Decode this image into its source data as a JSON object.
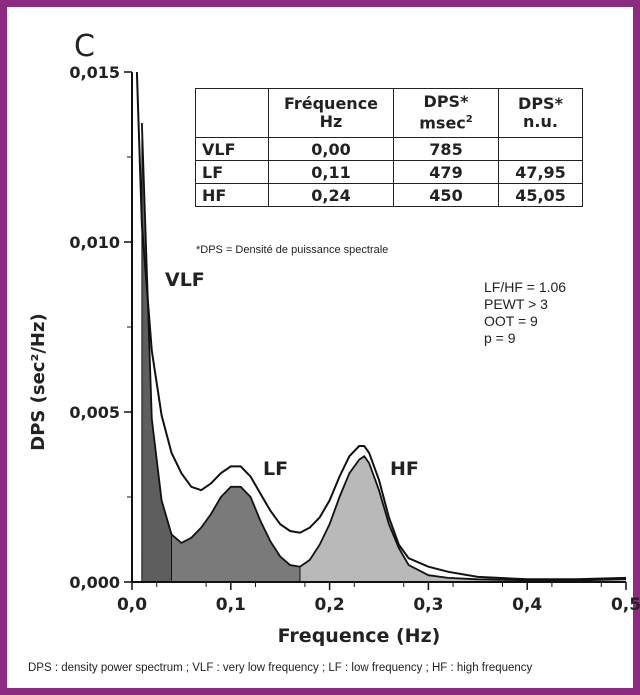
{
  "panel_label": "C",
  "table": {
    "headers": [
      {
        "line1": "",
        "line2": "",
        "sup": ""
      },
      {
        "line1": "Fréquence",
        "line2": "Hz",
        "sup": ""
      },
      {
        "line1": "DPS*",
        "line2": "msec",
        "sup": "2"
      },
      {
        "line1": "DPS*",
        "line2": "n.u.",
        "sup": ""
      }
    ],
    "rows": [
      {
        "band": "VLF",
        "freq": "0,00",
        "dps_ms": "785",
        "dps_nu": ""
      },
      {
        "band": "LF",
        "freq": "0,11",
        "dps_ms": "479",
        "dps_nu": "47,95"
      },
      {
        "band": "HF",
        "freq": "0,24",
        "dps_ms": "450",
        "dps_nu": "45,05"
      }
    ],
    "note": "*DPS = Densité de puissance spectrale"
  },
  "stats": [
    "LF/HF = 1.06",
    "PEWT > 3",
    "OOT = 9",
    "p = 9"
  ],
  "footnote": "DPS : density power spectrum ; VLF : very low frequency ; LF : low frequency ; HF : high frequency",
  "colors": {
    "frame": "#8d2b82",
    "lf_fill": "#7a7a7a",
    "hf_fill": "#b9b9b9",
    "vlf_fill": "#5e5e5e",
    "line": "#111111"
  },
  "chart_data": {
    "type": "area",
    "title": "",
    "xlabel": "Frequence (Hz)",
    "ylabel": "DPS (sec²/Hz)",
    "xlim": [
      0,
      0.5
    ],
    "ylim": [
      0,
      0.015
    ],
    "xticks": [
      "0,0",
      "0,1",
      "0,2",
      "0,3",
      "0,4",
      "0,5"
    ],
    "yticks": [
      "0,000",
      "0,005",
      "0,010",
      "0,015"
    ],
    "band_labels": [
      "VLF",
      "LF",
      "HF"
    ],
    "bands": [
      {
        "name": "VLF",
        "range": [
          0.0,
          0.04
        ]
      },
      {
        "name": "LF",
        "range": [
          0.04,
          0.17
        ]
      },
      {
        "name": "HF",
        "range": [
          0.17,
          0.4
        ]
      }
    ],
    "series": [
      {
        "x": [
          0.005,
          0.01,
          0.02,
          0.03,
          0.04,
          0.05,
          0.06,
          0.07,
          0.08,
          0.09,
          0.1,
          0.11,
          0.12,
          0.13,
          0.14,
          0.15,
          0.16,
          0.17,
          0.18,
          0.19,
          0.2,
          0.21,
          0.22,
          0.23,
          0.235,
          0.24,
          0.25,
          0.26,
          0.27,
          0.28,
          0.3,
          0.32,
          0.35,
          0.4,
          0.45,
          0.5
        ],
        "y": [
          0.0155,
          0.0105,
          0.0068,
          0.0049,
          0.0038,
          0.0032,
          0.0028,
          0.0027,
          0.0029,
          0.0032,
          0.0034,
          0.0034,
          0.0031,
          0.0026,
          0.0021,
          0.0017,
          0.0015,
          0.00145,
          0.0016,
          0.0019,
          0.0024,
          0.0031,
          0.0037,
          0.004,
          0.004,
          0.0038,
          0.003,
          0.0019,
          0.0011,
          0.0007,
          0.00045,
          0.0003,
          0.00015,
          8e-05,
          8e-05,
          0.00012
        ]
      },
      {
        "x": [
          0.01,
          0.02,
          0.03,
          0.04,
          0.05,
          0.06,
          0.07,
          0.08,
          0.09,
          0.1,
          0.11,
          0.12,
          0.13,
          0.14,
          0.15,
          0.16,
          0.17,
          0.18,
          0.19,
          0.2,
          0.21,
          0.22,
          0.23,
          0.235,
          0.24,
          0.25,
          0.26,
          0.27,
          0.28,
          0.3,
          0.32,
          0.35,
          0.4,
          0.45,
          0.5
        ],
        "y": [
          0.0135,
          0.0048,
          0.0024,
          0.0014,
          0.00115,
          0.0013,
          0.0016,
          0.002,
          0.0025,
          0.0028,
          0.0028,
          0.0025,
          0.0018,
          0.0012,
          0.00075,
          0.0005,
          0.00045,
          0.00065,
          0.0011,
          0.0017,
          0.0025,
          0.0032,
          0.0036,
          0.0037,
          0.0035,
          0.0027,
          0.0017,
          0.001,
          0.0005,
          0.0002,
          0.00012,
          8e-05,
          5e-05,
          5e-05,
          8e-05
        ]
      }
    ],
    "annotations": [
      "VLF",
      "LF",
      "HF"
    ],
    "grid": false
  }
}
